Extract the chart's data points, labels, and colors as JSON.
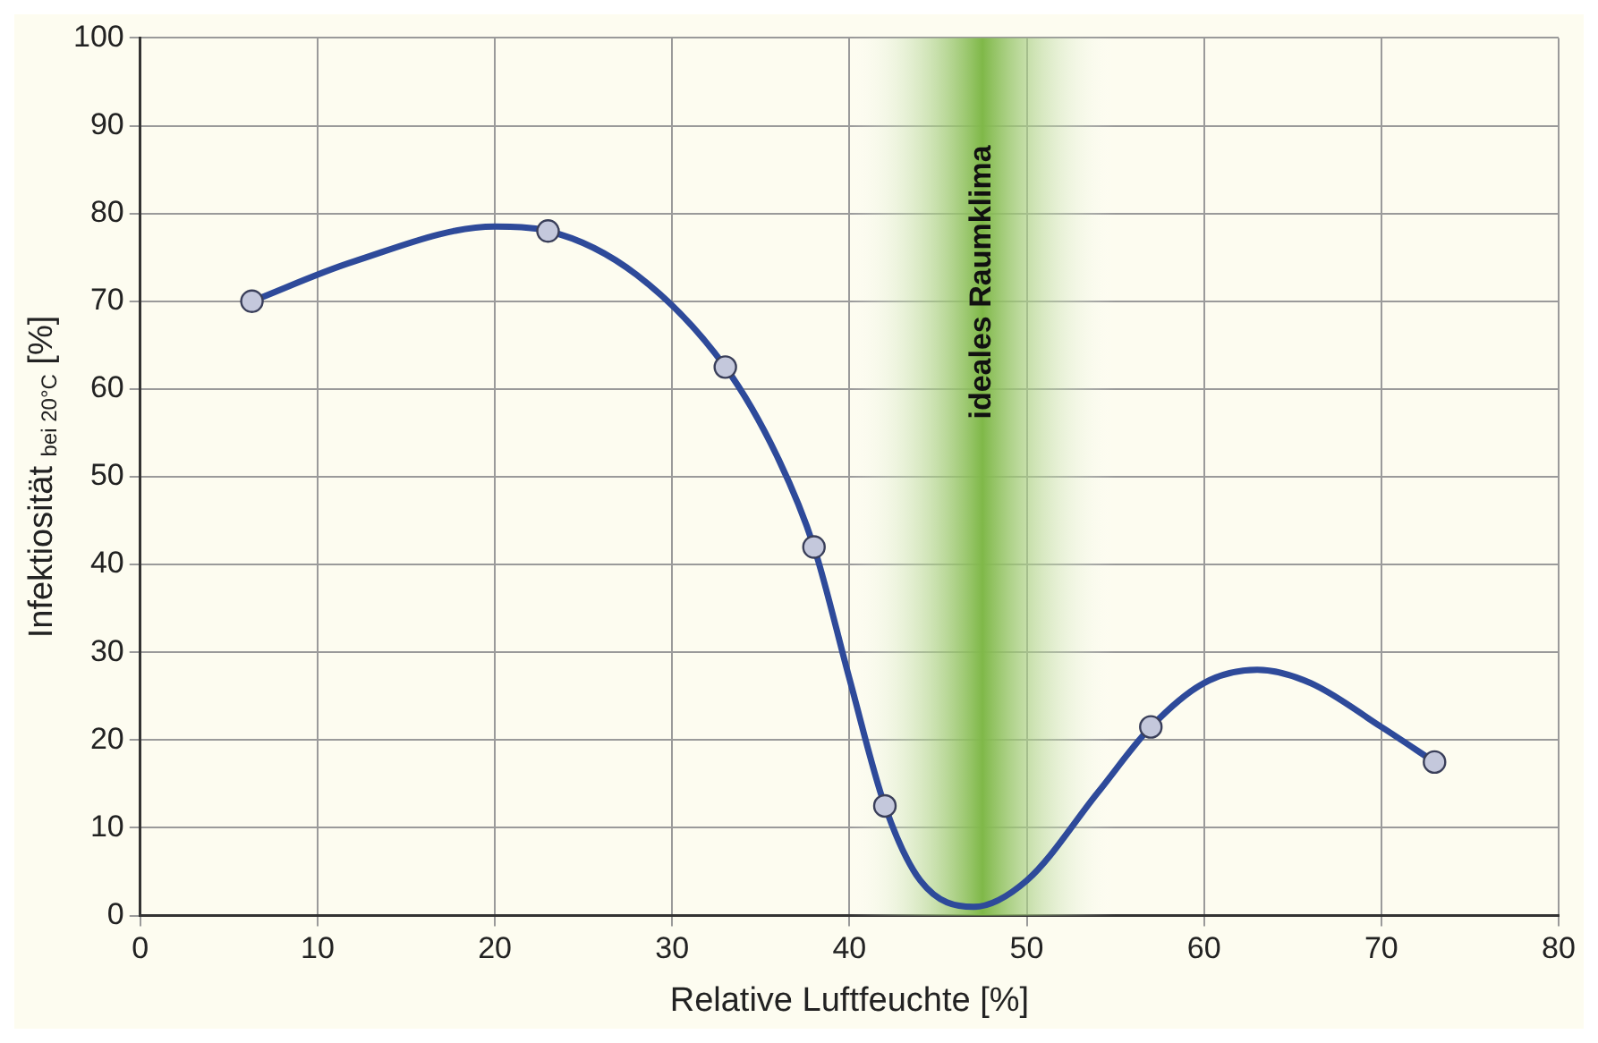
{
  "chart_data": {
    "type": "line",
    "xlabel": "Relative Luftfeuchte [%]",
    "ylabel": "Infektiosität $_{bei 20°C}$ [%]",
    "xlim": [
      0,
      80
    ],
    "xticks": [
      0,
      10,
      20,
      30,
      40,
      50,
      60,
      70,
      80
    ],
    "ylim": [
      0,
      100
    ],
    "yticks": [
      0,
      10,
      20,
      30,
      40,
      50,
      60,
      70,
      80,
      90,
      100
    ],
    "grid": true,
    "bands": [
      {
        "axis": "x",
        "from": 40,
        "to": 55,
        "label": "ideales Raumklima",
        "color": "#7fb848"
      }
    ],
    "series": [
      {
        "type": "line",
        "color": "#2e4a9a",
        "marker": "none",
        "line_style": "solid",
        "x": [
          6.3,
          12,
          20,
          23,
          28,
          33,
          36,
          38,
          40,
          42,
          44,
          47,
          50,
          54,
          57,
          60,
          63,
          66,
          70,
          73
        ],
        "values": [
          70,
          74.5,
          78.5,
          78,
          73,
          62.5,
          52,
          42,
          27,
          12.5,
          4,
          1,
          4,
          14,
          21.5,
          26.5,
          28,
          26.5,
          21.5,
          17.5
        ]
      },
      {
        "type": "scatter",
        "color": "#c4c8dc",
        "marker": "circle",
        "x": [
          6.3,
          23,
          33,
          38,
          42,
          57,
          73
        ],
        "values": [
          70,
          78,
          62.5,
          42,
          12.5,
          21.5,
          17.5
        ]
      }
    ]
  }
}
